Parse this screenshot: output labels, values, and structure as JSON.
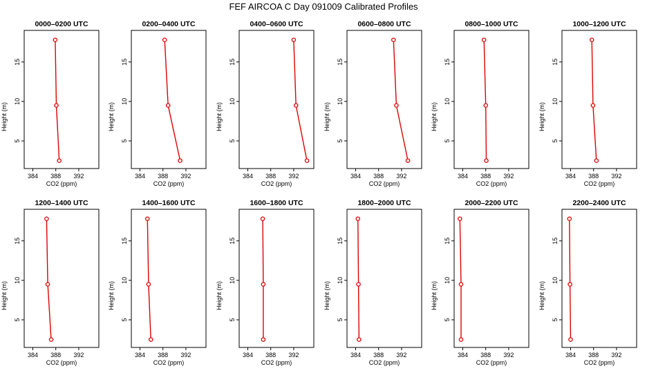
{
  "title": "FEF  AIRCOA C  Day 091009  Calibrated Profiles",
  "colors": {
    "series": "#dd0000",
    "axis": "#000000",
    "background": "#ffffff"
  },
  "chart_data": {
    "type": "line",
    "orientation": "vertical-profile",
    "xlabel": "CO2 (ppm)",
    "ylabel": "Height (m)",
    "xlim": [
      382.5,
      395.5
    ],
    "ylim": [
      1.5,
      19
    ],
    "xticks": [
      384,
      388,
      392
    ],
    "yticks": [
      5,
      10,
      15
    ],
    "panels": [
      {
        "title": "0000–0200 UTC",
        "points": [
          {
            "co2": 387.9,
            "height": 17.8
          },
          {
            "co2": 388.1,
            "height": 9.5
          },
          {
            "co2": 388.6,
            "height": 2.5
          }
        ]
      },
      {
        "title": "0200–0400 UTC",
        "points": [
          {
            "co2": 388.3,
            "height": 17.8
          },
          {
            "co2": 388.9,
            "height": 9.5
          },
          {
            "co2": 391.0,
            "height": 2.5
          }
        ]
      },
      {
        "title": "0400–0600 UTC",
        "points": [
          {
            "co2": 392.0,
            "height": 17.8
          },
          {
            "co2": 392.4,
            "height": 9.5
          },
          {
            "co2": 394.3,
            "height": 2.5
          }
        ]
      },
      {
        "title": "0600–0800 UTC",
        "points": [
          {
            "co2": 390.6,
            "height": 17.8
          },
          {
            "co2": 391.1,
            "height": 9.5
          },
          {
            "co2": 393.1,
            "height": 2.5
          }
        ]
      },
      {
        "title": "0800–1000 UTC",
        "points": [
          {
            "co2": 387.7,
            "height": 17.8
          },
          {
            "co2": 388.0,
            "height": 9.5
          },
          {
            "co2": 388.1,
            "height": 2.5
          }
        ]
      },
      {
        "title": "1000–1200 UTC",
        "points": [
          {
            "co2": 387.7,
            "height": 17.8
          },
          {
            "co2": 387.9,
            "height": 9.5
          },
          {
            "co2": 388.5,
            "height": 2.5
          }
        ]
      },
      {
        "title": "1200–1400 UTC",
        "points": [
          {
            "co2": 386.4,
            "height": 17.8
          },
          {
            "co2": 386.6,
            "height": 9.5
          },
          {
            "co2": 387.2,
            "height": 2.5
          }
        ]
      },
      {
        "title": "1400–1600 UTC",
        "points": [
          {
            "co2": 385.3,
            "height": 17.8
          },
          {
            "co2": 385.5,
            "height": 9.5
          },
          {
            "co2": 385.9,
            "height": 2.5
          }
        ]
      },
      {
        "title": "1600–1800 UTC",
        "points": [
          {
            "co2": 386.6,
            "height": 17.8
          },
          {
            "co2": 386.7,
            "height": 9.5
          },
          {
            "co2": 386.7,
            "height": 2.5
          }
        ]
      },
      {
        "title": "1800–2000 UTC",
        "points": [
          {
            "co2": 384.4,
            "height": 17.8
          },
          {
            "co2": 384.5,
            "height": 9.5
          },
          {
            "co2": 384.6,
            "height": 2.5
          }
        ]
      },
      {
        "title": "2000–2200 UTC",
        "points": [
          {
            "co2": 383.5,
            "height": 17.8
          },
          {
            "co2": 383.7,
            "height": 9.5
          },
          {
            "co2": 383.7,
            "height": 2.5
          }
        ]
      },
      {
        "title": "2200–2400 UTC",
        "points": [
          {
            "co2": 383.8,
            "height": 17.8
          },
          {
            "co2": 383.9,
            "height": 9.5
          },
          {
            "co2": 384.0,
            "height": 2.5
          }
        ]
      }
    ]
  }
}
